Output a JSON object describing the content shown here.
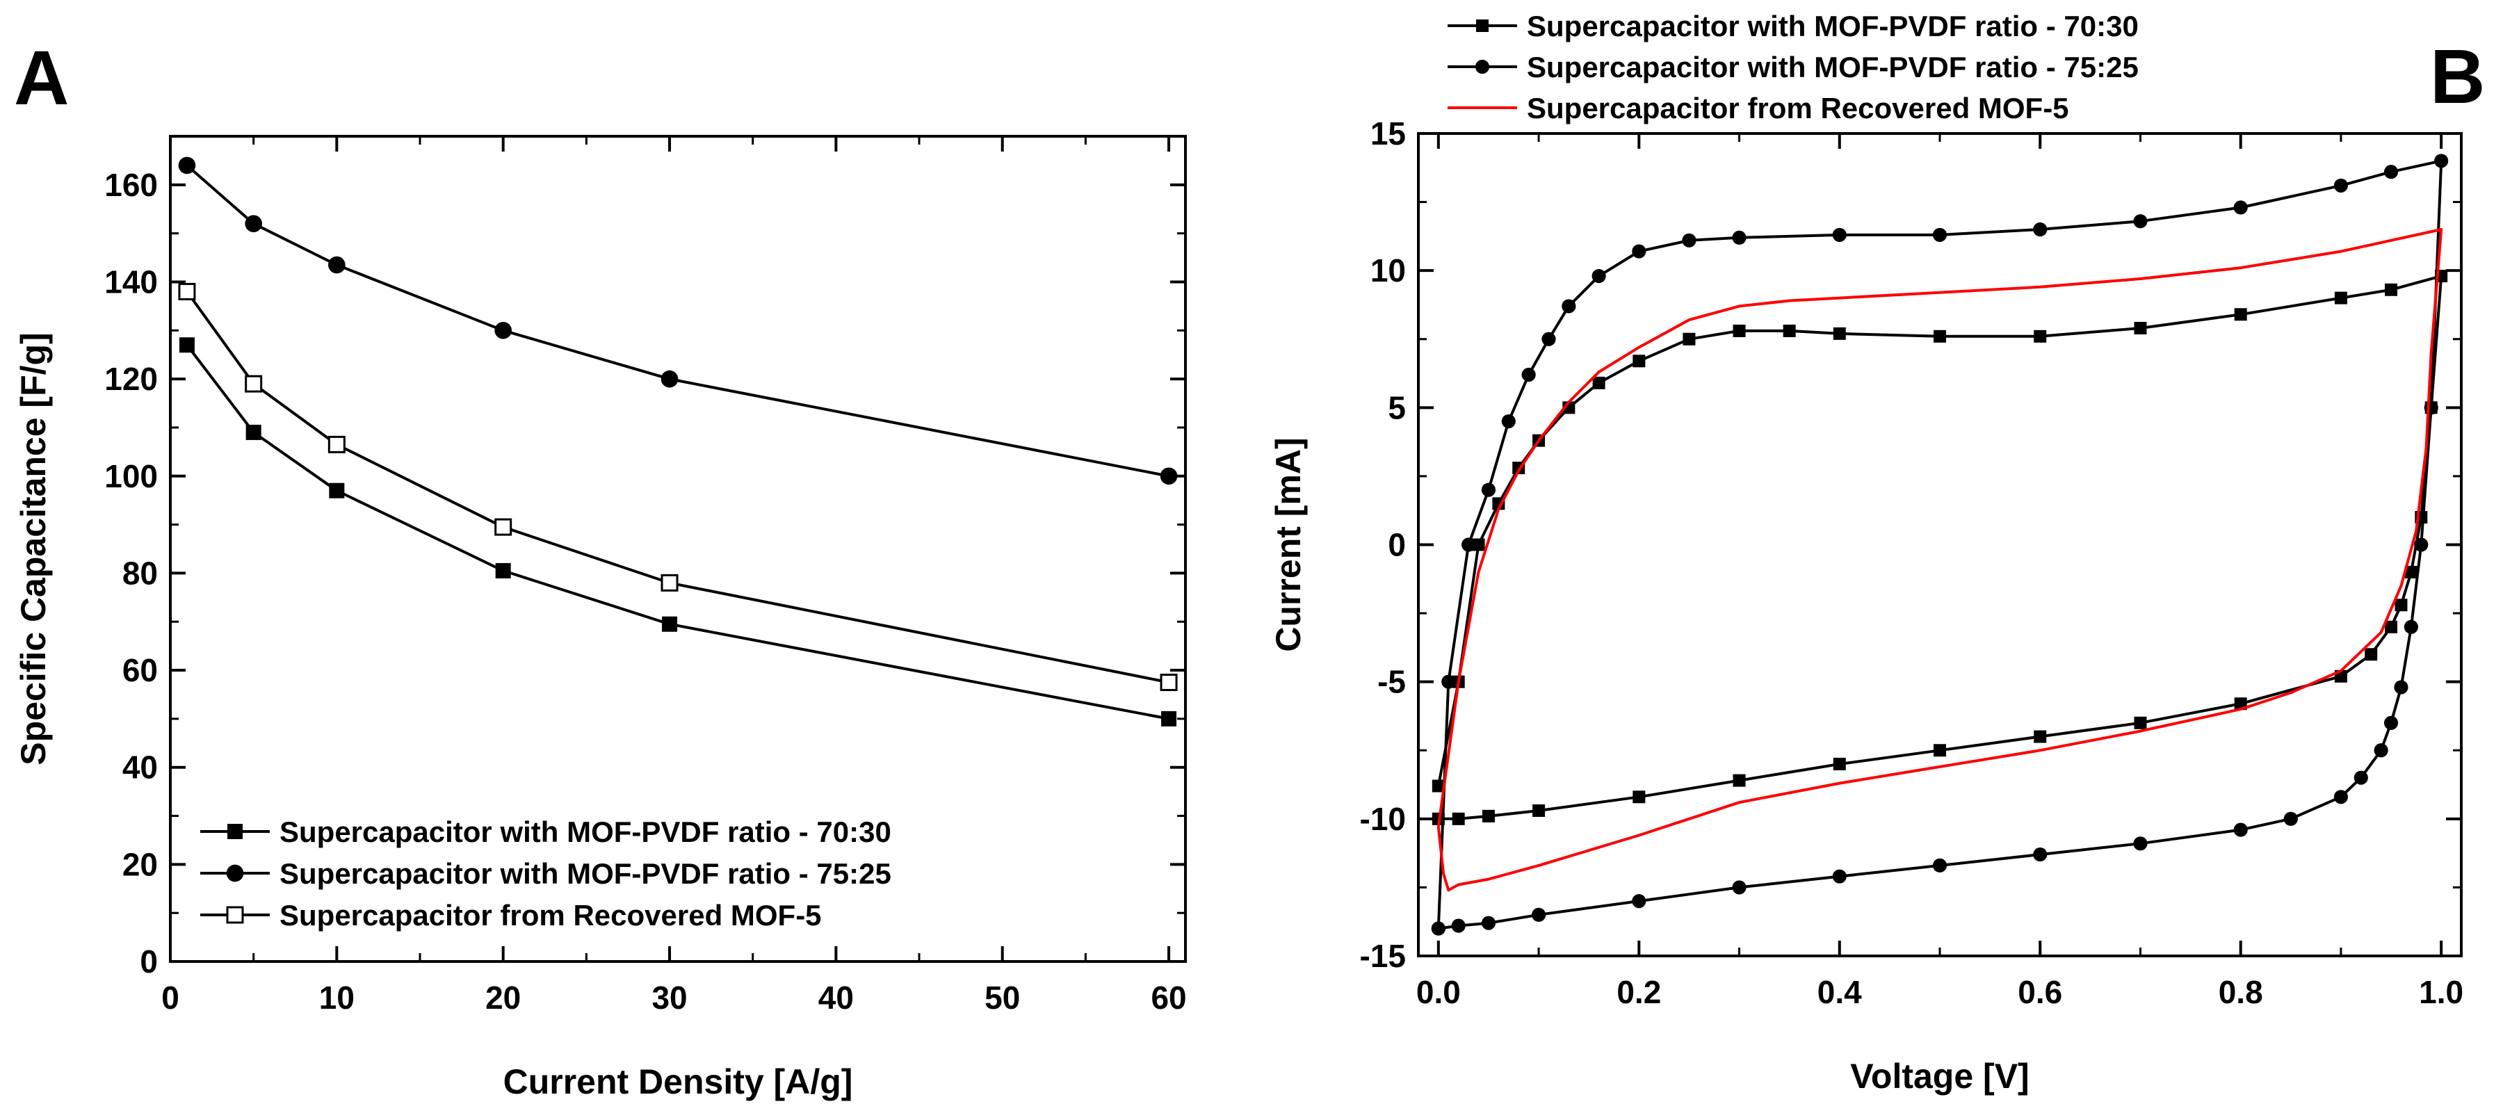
{
  "colors": {
    "black": "#000000",
    "red": "#ff0000",
    "open_fill": "#ffffff"
  },
  "panels": [
    {
      "label": "A"
    },
    {
      "label": "B"
    }
  ],
  "chart_data": [
    {
      "type": "line",
      "panel": "A",
      "title": "",
      "xlabel": "Current Density [A/g]",
      "ylabel": "Specific Capacitance [F/g]",
      "xlim": [
        0,
        61
      ],
      "ylim": [
        0,
        170
      ],
      "xticks": [
        0,
        10,
        20,
        30,
        40,
        50,
        60
      ],
      "yticks": [
        0,
        20,
        40,
        60,
        80,
        100,
        120,
        140,
        160
      ],
      "legend_position": "bottom-left",
      "x": [
        1,
        5,
        10,
        20,
        30,
        60
      ],
      "series": [
        {
          "name": "Supercapacitor with MOF-PVDF ratio - 70:30",
          "marker": "filled-square",
          "color": "#000000",
          "values": [
            127,
            109,
            97,
            80.5,
            69.5,
            50
          ]
        },
        {
          "name": "Supercapacitor with MOF-PVDF ratio - 75:25",
          "marker": "filled-circle",
          "color": "#000000",
          "values": [
            164,
            152,
            143.5,
            130,
            120,
            100
          ]
        },
        {
          "name": "Supercapacitor from Recovered MOF-5",
          "marker": "open-square",
          "color": "#000000",
          "values": [
            138,
            119,
            106.5,
            89.5,
            78,
            57.5
          ]
        }
      ]
    },
    {
      "type": "line",
      "panel": "B",
      "title": "",
      "xlabel": "Voltage [V]",
      "ylabel": "Current [mA]",
      "xlim": [
        -0.02,
        1.02
      ],
      "ylim": [
        -15,
        15
      ],
      "xticks": [
        0.0,
        0.2,
        0.4,
        0.6,
        0.8,
        1.0
      ],
      "xtick_labels": [
        "0.0",
        "0.2",
        "0.4",
        "0.6",
        "0.8",
        "1.0"
      ],
      "yticks": [
        -15,
        -10,
        -5,
        0,
        5,
        10,
        15
      ],
      "legend_position": "top-outside",
      "series": [
        {
          "name": "Supercapacitor with MOF-PVDF ratio - 70:30",
          "marker": "filled-square",
          "color": "#000000",
          "x": [
            0.0,
            0.02,
            0.04,
            0.06,
            0.08,
            0.1,
            0.13,
            0.16,
            0.2,
            0.25,
            0.3,
            0.35,
            0.4,
            0.5,
            0.6,
            0.7,
            0.8,
            0.9,
            0.95,
            1.0,
            0.99,
            0.98,
            0.97,
            0.96,
            0.95,
            0.93,
            0.9,
            0.8,
            0.7,
            0.6,
            0.5,
            0.4,
            0.3,
            0.2,
            0.1,
            0.05,
            0.02,
            0.0
          ],
          "y": [
            -8.8,
            -5.0,
            0.0,
            1.5,
            2.8,
            3.8,
            5.0,
            5.9,
            6.7,
            7.5,
            7.8,
            7.8,
            7.7,
            7.6,
            7.6,
            7.9,
            8.4,
            9.0,
            9.3,
            9.8,
            5.0,
            1.0,
            -1.0,
            -2.2,
            -3.0,
            -4.0,
            -4.8,
            -5.8,
            -6.5,
            -7.0,
            -7.5,
            -8.0,
            -8.6,
            -9.2,
            -9.7,
            -9.9,
            -10.0,
            -10.0
          ]
        },
        {
          "name": "Supercapacitor with MOF-PVDF ratio - 75:25",
          "marker": "filled-circle",
          "color": "#000000",
          "x": [
            0.0,
            0.01,
            0.03,
            0.05,
            0.07,
            0.09,
            0.11,
            0.13,
            0.16,
            0.2,
            0.25,
            0.3,
            0.4,
            0.5,
            0.6,
            0.7,
            0.8,
            0.9,
            0.95,
            1.0,
            0.99,
            0.98,
            0.97,
            0.96,
            0.95,
            0.94,
            0.92,
            0.9,
            0.85,
            0.8,
            0.7,
            0.6,
            0.5,
            0.4,
            0.3,
            0.2,
            0.1,
            0.05,
            0.02,
            0.0
          ],
          "y": [
            -14.0,
            -5.0,
            0.0,
            2.0,
            4.5,
            6.2,
            7.5,
            8.7,
            9.8,
            10.7,
            11.1,
            11.2,
            11.3,
            11.3,
            11.5,
            11.8,
            12.3,
            13.1,
            13.6,
            14.0,
            5.0,
            0.0,
            -3.0,
            -5.2,
            -6.5,
            -7.5,
            -8.5,
            -9.2,
            -10.0,
            -10.4,
            -10.9,
            -11.3,
            -11.7,
            -12.1,
            -12.5,
            -13.0,
            -13.5,
            -13.8,
            -13.9,
            -14.0
          ]
        },
        {
          "name": "Supercapacitor from Recovered MOF-5",
          "marker": "none",
          "color": "#ff0000",
          "x": [
            0.0,
            0.02,
            0.04,
            0.06,
            0.08,
            0.1,
            0.13,
            0.16,
            0.2,
            0.25,
            0.3,
            0.35,
            0.4,
            0.5,
            0.6,
            0.7,
            0.8,
            0.9,
            0.95,
            1.0,
            0.99,
            0.985,
            0.975,
            0.96,
            0.94,
            0.9,
            0.85,
            0.8,
            0.7,
            0.6,
            0.5,
            0.4,
            0.3,
            0.2,
            0.1,
            0.05,
            0.02,
            0.01,
            0.005,
            0.0
          ],
          "y": [
            -10.3,
            -5.0,
            -1.0,
            1.3,
            2.7,
            3.8,
            5.2,
            6.3,
            7.2,
            8.2,
            8.7,
            8.9,
            9.0,
            9.2,
            9.4,
            9.7,
            10.1,
            10.7,
            11.1,
            11.5,
            7.0,
            3.5,
            0.5,
            -1.5,
            -3.2,
            -4.6,
            -5.4,
            -6.0,
            -6.8,
            -7.5,
            -8.1,
            -8.7,
            -9.4,
            -10.6,
            -11.7,
            -12.2,
            -12.4,
            -12.6,
            -12.0,
            -10.3
          ]
        }
      ]
    }
  ]
}
